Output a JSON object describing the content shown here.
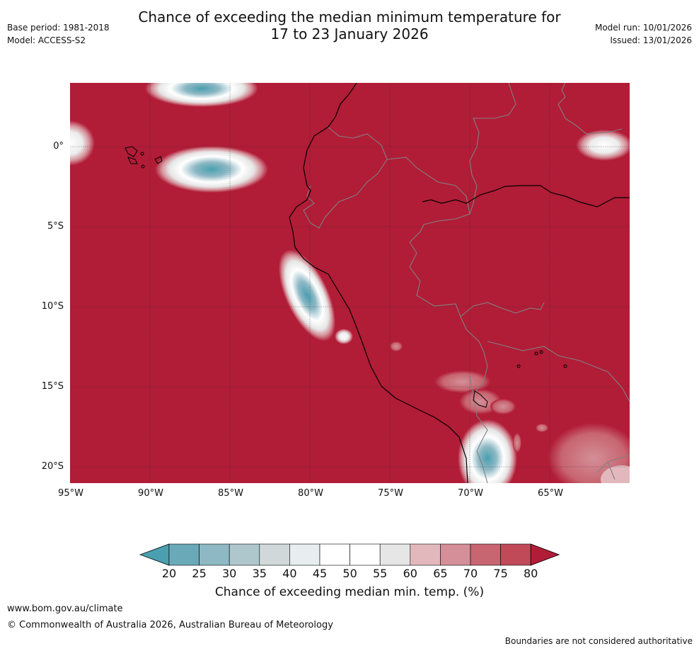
{
  "header": {
    "title_line1": "Chance of exceeding the median minimum temperature for",
    "title_line2": "17 to 23 January 2026",
    "base_period": "Base period: 1981-2018",
    "model": "Model: ACCESS-S2",
    "model_run": "Model run: 10/01/2026",
    "issued": "Issued: 13/01/2026"
  },
  "map": {
    "lat_labels": [
      "0°",
      "5°S",
      "10°S",
      "15°S",
      "20°S"
    ],
    "lon_labels": [
      "95°W",
      "90°W",
      "85°W",
      "80°W",
      "75°W",
      "70°W",
      "65°W"
    ],
    "background_color": "#b11c37"
  },
  "colorbar": {
    "ticks": [
      "20",
      "25",
      "30",
      "35",
      "40",
      "45",
      "50",
      "55",
      "60",
      "65",
      "70",
      "75",
      "80"
    ],
    "colors": [
      "#4a9fb0",
      "#6aa9b8",
      "#8db8c4",
      "#adc7cc",
      "#d0d8da",
      "#e8eef0",
      "#ffffff",
      "#ffffff",
      "#e6e6e6",
      "#e2b8bd",
      "#d48f98",
      "#c76570",
      "#c04a58",
      "#b11c37"
    ],
    "label": "Chance of exceeding median min. temp. (%)"
  },
  "footer": {
    "site": "www.bom.gov.au/climate",
    "copyright": "© Commonwealth of Australia 2026, Australian Bureau of Meteorology",
    "disclaimer": "Boundaries are not considered authoritative"
  }
}
